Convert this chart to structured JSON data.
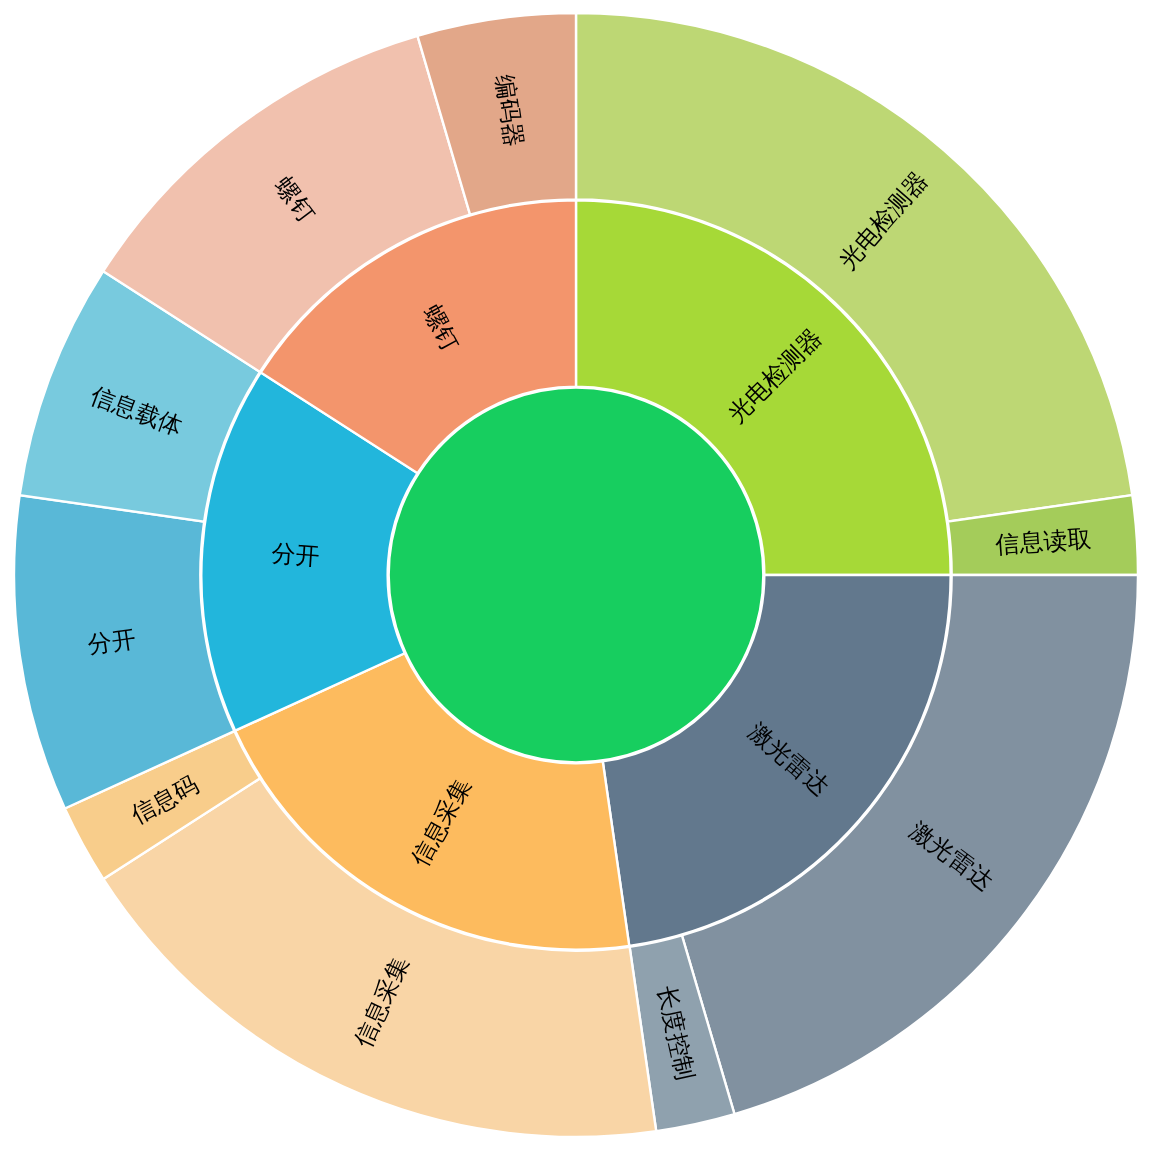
{
  "chart_data": [
    {
      "type": "pie",
      "categories": [
        null
      ],
      "values": [
        100
      ],
      "colors": [
        "#17ce5f"
      ]
    },
    {
      "type": "donut",
      "categories": [
        "光电检测器",
        "激光雷达",
        "信息采集",
        "分开",
        "螺钉"
      ],
      "values": [
        25,
        22.73,
        20.45,
        15.91,
        15.91
      ],
      "colors": [
        "#a6d937",
        "#62788d",
        "#fdbb5e",
        "#22b6dc",
        "#f3956c"
      ]
    },
    {
      "type": "donut",
      "categories": [
        "光电检测器",
        "信息读取",
        "激光雷达",
        "长度控制",
        "信息采集",
        "信息码",
        "分开",
        "信息载体",
        "螺钉",
        "编码器"
      ],
      "values": [
        22.73,
        2.27,
        20.45,
        2.27,
        18.18,
        2.28,
        9.09,
        6.82,
        11.36,
        4.55
      ],
      "colors": [
        "#bdd774",
        "#a4cc5a",
        "#8191a0",
        "#8fa1ae",
        "#f9d5a6",
        "#f8cd8b",
        "#59b8d7",
        "#78cade",
        "#f1c1ae",
        "#e2a789"
      ]
    }
  ]
}
